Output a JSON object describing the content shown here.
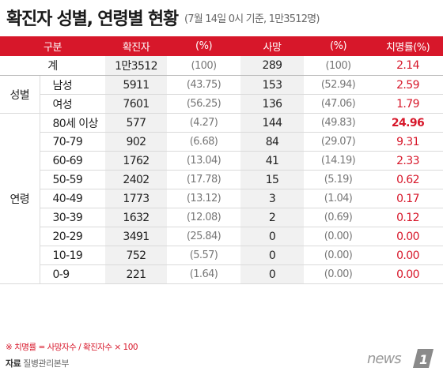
{
  "title": {
    "main": "확진자 성별, 연령별 현황",
    "sub": "(7월 14일 0시 기준, 1만3512명)"
  },
  "table": {
    "headers": [
      "구분",
      "확진자",
      "(%)",
      "사망",
      "(%)",
      "치명률(%)"
    ],
    "total": {
      "label": "계",
      "confirmed": "1만3512",
      "confirmed_pct": "(100)",
      "deaths": "289",
      "deaths_pct": "(100)",
      "rate": "2.14"
    },
    "sex": {
      "label": "성별",
      "rows": [
        {
          "label": "남성",
          "confirmed": "5911",
          "confirmed_pct": "(43.75)",
          "deaths": "153",
          "deaths_pct": "(52.94)",
          "rate": "2.59"
        },
        {
          "label": "여성",
          "confirmed": "7601",
          "confirmed_pct": "(56.25)",
          "deaths": "136",
          "deaths_pct": "(47.06)",
          "rate": "1.79"
        }
      ]
    },
    "age": {
      "label": "연령",
      "rows": [
        {
          "label": "80세 이상",
          "confirmed": "577",
          "confirmed_pct": "(4.27)",
          "deaths": "144",
          "deaths_pct": "(49.83)",
          "rate": "24.96"
        },
        {
          "label": "70-79",
          "confirmed": "902",
          "confirmed_pct": "(6.68)",
          "deaths": "84",
          "deaths_pct": "(29.07)",
          "rate": "9.31"
        },
        {
          "label": "60-69",
          "confirmed": "1762",
          "confirmed_pct": "(13.04)",
          "deaths": "41",
          "deaths_pct": "(14.19)",
          "rate": "2.33"
        },
        {
          "label": "50-59",
          "confirmed": "2402",
          "confirmed_pct": "(17.78)",
          "deaths": "15",
          "deaths_pct": "(5.19)",
          "rate": "0.62"
        },
        {
          "label": "40-49",
          "confirmed": "1773",
          "confirmed_pct": "(13.12)",
          "deaths": "3",
          "deaths_pct": "(1.04)",
          "rate": "0.17"
        },
        {
          "label": "30-39",
          "confirmed": "1632",
          "confirmed_pct": "(12.08)",
          "deaths": "2",
          "deaths_pct": "(0.69)",
          "rate": "0.12"
        },
        {
          "label": "20-29",
          "confirmed": "3491",
          "confirmed_pct": "(25.84)",
          "deaths": "0",
          "deaths_pct": "(0.00)",
          "rate": "0.00"
        },
        {
          "label": "10-19",
          "confirmed": "752",
          "confirmed_pct": "(5.57)",
          "deaths": "0",
          "deaths_pct": "(0.00)",
          "rate": "0.00"
        },
        {
          "label": "0-9",
          "confirmed": "221",
          "confirmed_pct": "(1.64)",
          "deaths": "0",
          "deaths_pct": "(0.00)",
          "rate": "0.00"
        }
      ]
    }
  },
  "footnote": "※ 치명률 = 사망자수 / 확진자수 × 100",
  "source": {
    "label": "자료",
    "value": "질병관리본부"
  },
  "logo": {
    "text": "news",
    "mark": "1"
  },
  "colors": {
    "accent": "#d7172a",
    "shade": "#f1f1f1",
    "rule": "#dadada"
  }
}
